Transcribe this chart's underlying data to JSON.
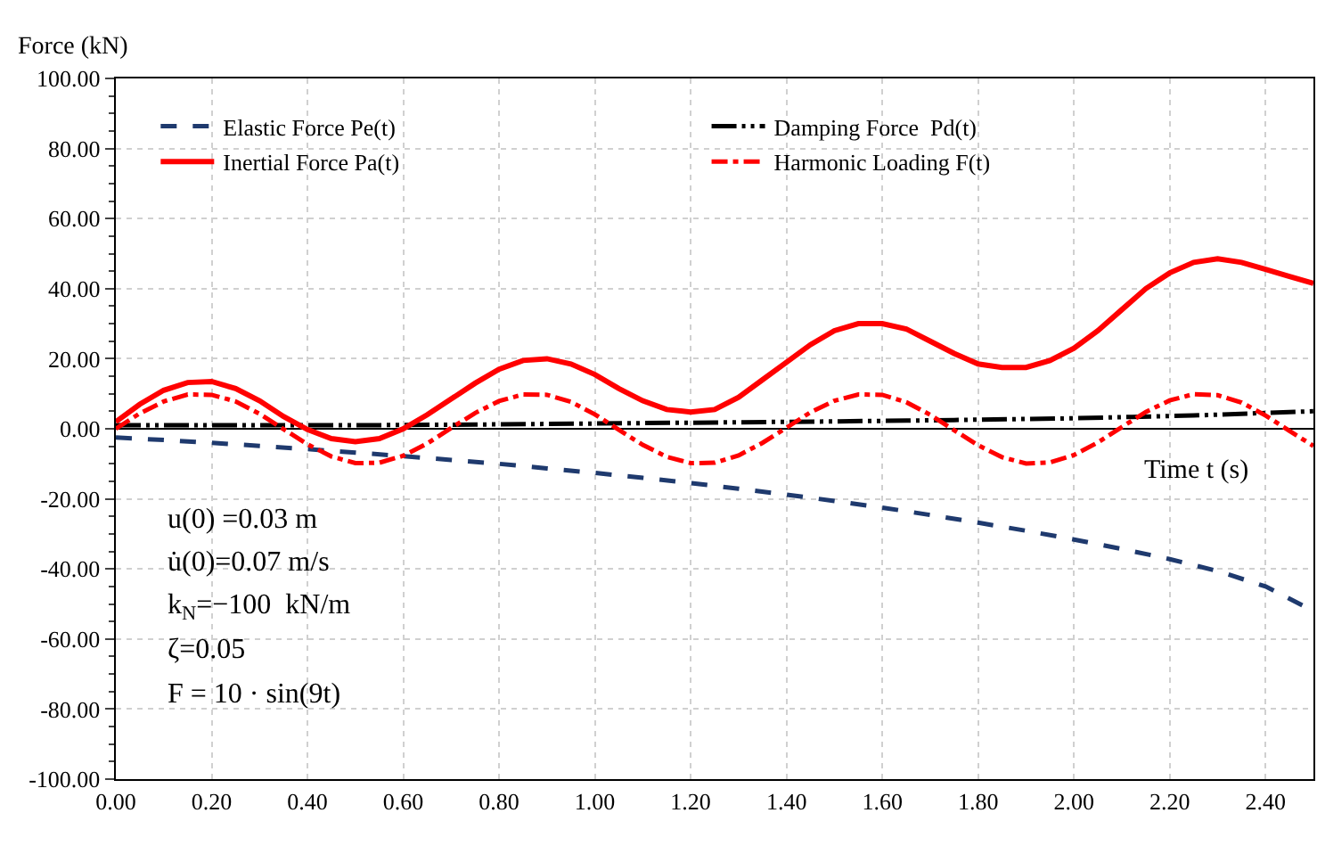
{
  "chart_data": {
    "type": "line",
    "xlabel": "Time t (s)",
    "ylabel": "Force (kN)",
    "xlim": [
      0,
      2.5
    ],
    "ylim": [
      -100,
      100
    ],
    "xticks": [
      {
        "value": 0,
        "label": "0.00"
      },
      {
        "value": 0.2,
        "label": "0.20"
      },
      {
        "value": 0.4,
        "label": "0.40"
      },
      {
        "value": 0.6,
        "label": "0.60"
      },
      {
        "value": 0.8,
        "label": "0.80"
      },
      {
        "value": 1,
        "label": "1.00"
      },
      {
        "value": 1.2,
        "label": "1.20"
      },
      {
        "value": 1.4,
        "label": "1.40"
      },
      {
        "value": 1.6,
        "label": "1.60"
      },
      {
        "value": 1.8,
        "label": "1.80"
      },
      {
        "value": 2,
        "label": "2.00"
      },
      {
        "value": 2.2,
        "label": "2.20"
      },
      {
        "value": 2.4,
        "label": "2.40"
      }
    ],
    "yticks": [
      {
        "value": -100,
        "label": "-100.00"
      },
      {
        "value": -80,
        "label": "-80.00"
      },
      {
        "value": -60,
        "label": "-60.00"
      },
      {
        "value": -40,
        "label": "-40.00"
      },
      {
        "value": -20,
        "label": "-20.00"
      },
      {
        "value": 0,
        "label": "0.00"
      },
      {
        "value": 20,
        "label": "20.00"
      },
      {
        "value": 40,
        "label": "40.00"
      },
      {
        "value": 60,
        "label": "60.00"
      },
      {
        "value": 80,
        "label": "80.00"
      },
      {
        "value": 100,
        "label": "100.00"
      }
    ],
    "grid": true,
    "legend": "top",
    "marker": "none",
    "series": [
      {
        "name": "Elastic Force Pe(t)",
        "color": "#1f3a6e",
        "line_style": "dashed",
        "x": [
          0,
          0.1,
          0.2,
          0.3,
          0.4,
          0.5,
          0.6,
          0.7,
          0.8,
          0.9,
          1.0,
          1.1,
          1.2,
          1.3,
          1.4,
          1.5,
          1.6,
          1.7,
          1.8,
          1.9,
          2.0,
          2.1,
          2.2,
          2.3,
          2.4,
          2.5
        ],
        "values": [
          -2.5,
          -3.2,
          -4,
          -4.9,
          -5.8,
          -6.8,
          -7.8,
          -8.9,
          -10,
          -11.3,
          -12.6,
          -14,
          -15.5,
          -17.1,
          -18.8,
          -20.6,
          -22.5,
          -24.6,
          -26.8,
          -29.1,
          -31.6,
          -34.3,
          -37.2,
          -40.6,
          -45,
          -52
        ]
      },
      {
        "name": "Damping Force  Pd(t)",
        "color": "#000000",
        "line_style": "dashdotdot",
        "x": [
          0,
          0.25,
          0.5,
          0.75,
          1.0,
          1.25,
          1.5,
          1.75,
          2.0,
          2.25,
          2.5
        ],
        "values": [
          1,
          1,
          1,
          1.2,
          1.5,
          1.8,
          2.1,
          2.5,
          3,
          3.8,
          5
        ]
      },
      {
        "name": "Inertial Force Pa(t)",
        "color": "#ff0000",
        "line_style": "solid",
        "x": [
          0,
          0.05,
          0.1,
          0.15,
          0.2,
          0.25,
          0.3,
          0.35,
          0.4,
          0.45,
          0.5,
          0.55,
          0.6,
          0.65,
          0.7,
          0.75,
          0.8,
          0.85,
          0.9,
          0.95,
          1.0,
          1.05,
          1.1,
          1.15,
          1.2,
          1.25,
          1.3,
          1.35,
          1.4,
          1.45,
          1.5,
          1.55,
          1.6,
          1.65,
          1.7,
          1.75,
          1.8,
          1.85,
          1.9,
          1.95,
          2.0,
          2.05,
          2.1,
          2.15,
          2.2,
          2.25,
          2.3,
          2.35,
          2.4,
          2.45,
          2.5
        ],
        "values": [
          2,
          7,
          11,
          13.2,
          13.5,
          11.5,
          8,
          3.5,
          -0.2,
          -2.8,
          -3.7,
          -2.8,
          0,
          4,
          8.5,
          13,
          17,
          19.5,
          20,
          18.5,
          15.5,
          11.5,
          8,
          5.5,
          4.8,
          5.5,
          9,
          14,
          19,
          24,
          28,
          30,
          30,
          28.5,
          25,
          21.5,
          18.5,
          17.5,
          17.5,
          19.5,
          23,
          28,
          34,
          40,
          44.5,
          47.5,
          48.5,
          47.5,
          45.5,
          43.5,
          41.5
        ]
      },
      {
        "name": "Harmonic Loading F(t)",
        "color": "#ff0000",
        "line_style": "dashdot",
        "x": [
          0,
          0.05,
          0.1,
          0.15,
          0.2,
          0.25,
          0.3,
          0.35,
          0.4,
          0.45,
          0.5,
          0.55,
          0.6,
          0.65,
          0.7,
          0.75,
          0.8,
          0.85,
          0.9,
          0.95,
          1.0,
          1.05,
          1.1,
          1.15,
          1.2,
          1.25,
          1.3,
          1.35,
          1.4,
          1.45,
          1.5,
          1.55,
          1.6,
          1.65,
          1.7,
          1.75,
          1.8,
          1.85,
          1.9,
          1.95,
          2.0,
          2.05,
          2.1,
          2.15,
          2.2,
          2.25,
          2.3,
          2.35,
          2.4,
          2.45,
          2.5
        ],
        "values": [
          0,
          4.4,
          7.8,
          9.8,
          9.7,
          7.8,
          4.3,
          -0.1,
          -4.4,
          -7.9,
          -9.8,
          -9.7,
          -7.7,
          -4.2,
          0.2,
          4.5,
          7.9,
          9.8,
          9.7,
          7.7,
          4.1,
          -0.3,
          -4.6,
          -8,
          -9.8,
          -9.7,
          -7.6,
          -4,
          0.3,
          4.7,
          8,
          9.8,
          9.7,
          7.6,
          4,
          -0.4,
          -4.7,
          -8.1,
          -9.9,
          -9.6,
          -7.5,
          -3.9,
          0.5,
          4.8,
          8.1,
          9.9,
          9.6,
          7.5,
          3.8,
          -0.6,
          -4.9
        ]
      }
    ],
    "annotations": [
      "u(0) =0.03 m",
      "u̇(0)=0.07 m/s",
      "k$_{N}$=−100  kN/m",
      "ζ=0.05",
      "F = 10 · sin(9t)"
    ]
  }
}
